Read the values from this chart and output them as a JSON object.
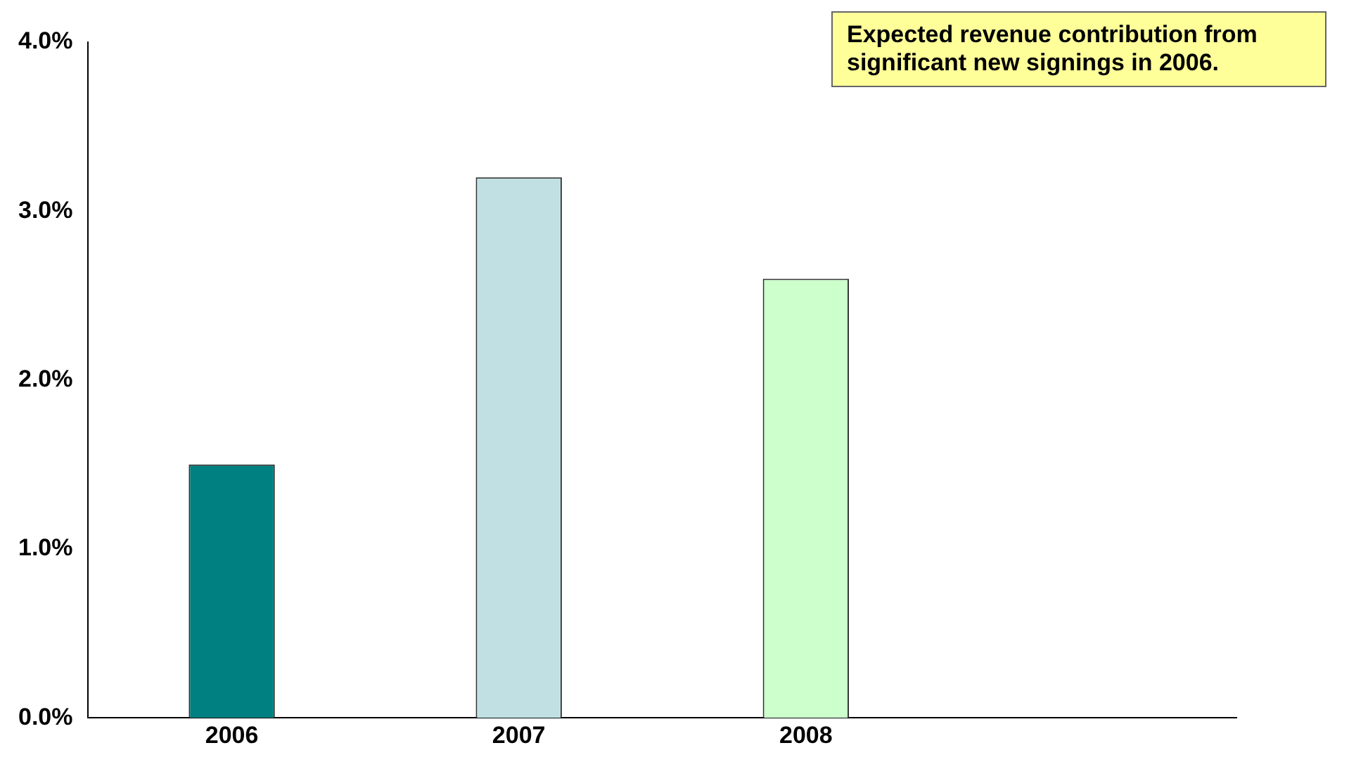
{
  "chart_data": {
    "type": "bar",
    "categories": [
      "2006",
      "2007",
      "2008",
      null
    ],
    "values": [
      1.5,
      3.2,
      2.6,
      null
    ],
    "colors": [
      "#008080",
      "#c0e0e4",
      "#ccffcc",
      "#ffffff"
    ],
    "ylim": [
      0,
      4
    ],
    "yticks": [
      {
        "value": 0,
        "label": "0.0%"
      },
      {
        "value": 1,
        "label": "1.0%"
      },
      {
        "value": 2,
        "label": "2.0%"
      },
      {
        "value": 3,
        "label": "3.0%"
      },
      {
        "value": 4,
        "label": "4.0%"
      }
    ],
    "grid": false,
    "legend": false,
    "annotations": [
      "Expected revenue contribution from significant new signings in 2006."
    ]
  }
}
